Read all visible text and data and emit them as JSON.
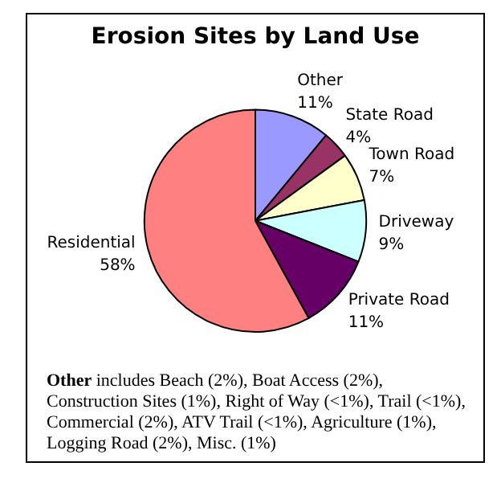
{
  "chart_data": {
    "type": "pie",
    "title": "Erosion Sites by Land Use",
    "categories": [
      "Other",
      "State Road",
      "Town Road",
      "Driveway",
      "Private Road",
      "Residential"
    ],
    "values": [
      11,
      4,
      7,
      9,
      11,
      58
    ],
    "value_labels": [
      "11%",
      "4%",
      "7%",
      "9%",
      "11%",
      "58%"
    ],
    "colors": [
      "#9999ff",
      "#993366",
      "#ffffcc",
      "#ccffff",
      "#660066",
      "#ff8080"
    ],
    "legend": false,
    "annotations": [
      "Other includes Beach (2%), Boat Access (2%), Construction Sites (1%), Right of Way (<1%), Trail (<1%), Commercial (2%), ATV Trail (<1%), Agriculture (1%), Logging Road (2%), Misc. (1%)"
    ]
  }
}
